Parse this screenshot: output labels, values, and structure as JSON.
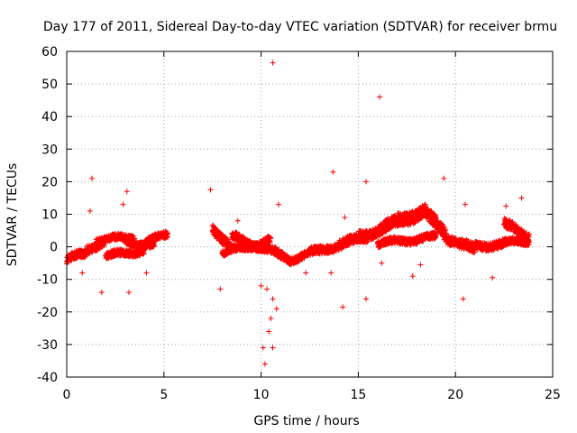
{
  "chart_data": {
    "type": "scatter",
    "title": "Day 177 of 2011, Sidereal Day-to-day VTEC variation (SDTVAR) for receiver brmu",
    "xlabel": "GPS time / hours",
    "ylabel": "SDTVAR / TECUs",
    "xlim": [
      0,
      25
    ],
    "ylim": [
      -40,
      60
    ],
    "xticks": [
      "0",
      "5",
      "10",
      "15",
      "20",
      "25"
    ],
    "yticks": [
      "60",
      "50",
      "40",
      "30",
      "20",
      "10",
      "0",
      "-10",
      "-20",
      "-30",
      "-40"
    ],
    "grid": true,
    "marker": "+",
    "color": "#ff0000",
    "series": [
      {
        "name": "SDTVAR",
        "bands": [
          {
            "x0": 0.0,
            "x1": 1.0,
            "y0": -4,
            "y1": -2,
            "spread": 2.5
          },
          {
            "x0": 1.0,
            "x1": 2.0,
            "y0": -1,
            "y1": 2,
            "spread": 2.5
          },
          {
            "x0": 1.5,
            "x1": 3.5,
            "y0": 2,
            "y1": 3,
            "spread": 2.0
          },
          {
            "x0": 2.0,
            "x1": 4.0,
            "y0": -3,
            "y1": -1,
            "spread": 2.0
          },
          {
            "x0": 3.0,
            "x1": 4.5,
            "y0": 2,
            "y1": 0,
            "spread": 2.0
          },
          {
            "x0": 4.0,
            "x1": 5.2,
            "y0": 1,
            "y1": 4,
            "spread": 2.0
          },
          {
            "x0": 7.5,
            "x1": 8.5,
            "y0": 6,
            "y1": -1,
            "spread": 3.0
          },
          {
            "x0": 8.5,
            "x1": 10.0,
            "y0": 3,
            "y1": 0,
            "spread": 2.5
          },
          {
            "x0": 8.0,
            "x1": 10.5,
            "y0": -2,
            "y1": 2,
            "spread": 2.0
          },
          {
            "x0": 10.0,
            "x1": 11.5,
            "y0": 0,
            "y1": -4,
            "spread": 2.5
          },
          {
            "x0": 11.5,
            "x1": 13.0,
            "y0": -4,
            "y1": -1,
            "spread": 2.0
          },
          {
            "x0": 12.5,
            "x1": 15.0,
            "y0": -2,
            "y1": 2,
            "spread": 2.5
          },
          {
            "x0": 14.0,
            "x1": 15.5,
            "y0": 1,
            "y1": 3,
            "spread": 2.5
          },
          {
            "x0": 15.0,
            "x1": 16.5,
            "y0": 3,
            "y1": 6,
            "spread": 3.0
          },
          {
            "x0": 16.0,
            "x1": 17.5,
            "y0": 5,
            "y1": 9,
            "spread": 3.5
          },
          {
            "x0": 17.0,
            "x1": 18.5,
            "y0": 8,
            "y1": 11,
            "spread": 4.0
          },
          {
            "x0": 18.5,
            "x1": 19.5,
            "y0": 10,
            "y1": 4,
            "spread": 4.0
          },
          {
            "x0": 16.0,
            "x1": 19.0,
            "y0": 1,
            "y1": 3,
            "spread": 2.0
          },
          {
            "x0": 19.5,
            "x1": 21.0,
            "y0": 3,
            "y1": -1,
            "spread": 3.0
          },
          {
            "x0": 21.0,
            "x1": 22.5,
            "y0": 0,
            "y1": 1,
            "spread": 2.5
          },
          {
            "x0": 22.5,
            "x1": 23.8,
            "y0": 7,
            "y1": 3,
            "spread": 3.0
          },
          {
            "x0": 22.5,
            "x1": 23.8,
            "y0": 1,
            "y1": 2,
            "spread": 2.0
          }
        ],
        "outliers": [
          [
            10.6,
            56.5
          ],
          [
            16.1,
            46
          ],
          [
            13.7,
            23
          ],
          [
            19.4,
            21
          ],
          [
            1.3,
            21
          ],
          [
            3.1,
            17
          ],
          [
            7.4,
            17.5
          ],
          [
            15.4,
            20
          ],
          [
            23.4,
            15
          ],
          [
            14.3,
            9
          ],
          [
            10.1,
            -31
          ],
          [
            10.2,
            -36
          ],
          [
            10.4,
            -26
          ],
          [
            10.5,
            -22
          ],
          [
            10.6,
            -31
          ],
          [
            10.6,
            -16
          ],
          [
            10.8,
            -19
          ],
          [
            10.0,
            -12
          ],
          [
            10.3,
            -13
          ],
          [
            14.2,
            -18.5
          ],
          [
            15.4,
            -16
          ],
          [
            20.4,
            -16
          ],
          [
            3.2,
            -14
          ],
          [
            1.8,
            -14
          ],
          [
            7.9,
            -13
          ],
          [
            13.6,
            -8
          ],
          [
            16.2,
            -5
          ],
          [
            17.8,
            -9
          ],
          [
            1.2,
            11
          ],
          [
            2.9,
            13
          ],
          [
            8.8,
            8
          ],
          [
            10.9,
            13
          ],
          [
            20.5,
            13
          ],
          [
            22.6,
            12.5
          ],
          [
            4.1,
            -8
          ],
          [
            12.3,
            -8
          ],
          [
            21.9,
            -9.5
          ],
          [
            18.2,
            -5.5
          ],
          [
            0.8,
            -8
          ]
        ]
      }
    ]
  }
}
